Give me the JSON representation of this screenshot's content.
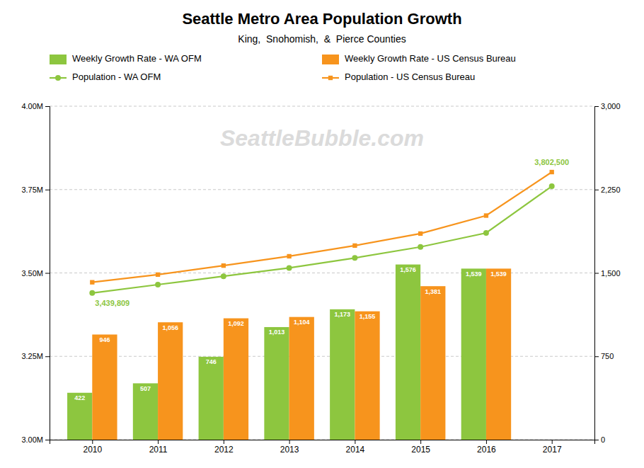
{
  "chart_data": {
    "type": "bar",
    "title": "Seattle Metro Area Population Growth",
    "subtitle": "King,  Snohomish,  &  Pierce Counties",
    "watermark": "SeattleBubble.com",
    "x": [
      2010,
      2011,
      2012,
      2013,
      2014,
      2015,
      2016,
      2017
    ],
    "xlim": [
      2009.35,
      2017.65
    ],
    "xticks": [
      2010,
      2011,
      2012,
      2013,
      2014,
      2015,
      2016,
      2017
    ],
    "ylim": [
      3000000,
      4000000
    ],
    "yticks": [
      {
        "value": 3000000,
        "label": "3.00M"
      },
      {
        "value": 3250000,
        "label": "3.25M"
      },
      {
        "value": 3500000,
        "label": "3.50M"
      },
      {
        "value": 3750000,
        "label": "3.75M"
      },
      {
        "value": 4000000,
        "label": "4.00M"
      }
    ],
    "y2lim": [
      0,
      3000
    ],
    "y2ticks": [
      0,
      750,
      {
        "value": 1500,
        "label": "1,500"
      },
      {
        "value": 2250,
        "label": "2,250"
      },
      {
        "value": 3000,
        "label": "3,000"
      }
    ],
    "grid": true,
    "legend": "top",
    "series": [
      {
        "name": "Weekly Growth Rate - WA OFM",
        "type": "bar",
        "axis": "y2",
        "color": "#8dc63f",
        "data_labels": true,
        "values": [
          422,
          507,
          746,
          1013,
          1173,
          1576,
          1539,
          null
        ],
        "value_labels": [
          "422",
          "507",
          "746",
          "1,013",
          "1,173",
          "1,576",
          "1,539",
          null
        ]
      },
      {
        "name": "Weekly Growth Rate - US Census Bureau",
        "type": "bar",
        "axis": "y2",
        "color": "#f7941d",
        "data_labels": true,
        "values": [
          946,
          1056,
          1092,
          1104,
          1155,
          1381,
          1539,
          null
        ],
        "value_labels": [
          "946",
          "1,056",
          "1,092",
          "1,104",
          "1,155",
          "1,381",
          "1,539",
          null
        ]
      },
      {
        "name": "Population - WA OFM",
        "type": "line",
        "color": "#8dc63f",
        "marker": "circle",
        "values": [
          3439809,
          3465000,
          3490000,
          3515000,
          3545000,
          3578000,
          3620000,
          3760000
        ]
      },
      {
        "name": "Population - US Census Bureau",
        "type": "line",
        "color": "#f7941d",
        "marker": "square",
        "values": [
          3472000,
          3495000,
          3522000,
          3550000,
          3582000,
          3618000,
          3672000,
          3802500
        ]
      }
    ],
    "annotations": [
      {
        "text": "3,439,809",
        "x": 2010,
        "y": 3439809,
        "color": "#8dc63f"
      },
      {
        "text": "3,802,500",
        "x": 2017,
        "y": 3802500,
        "color": "#8dc63f"
      }
    ]
  }
}
